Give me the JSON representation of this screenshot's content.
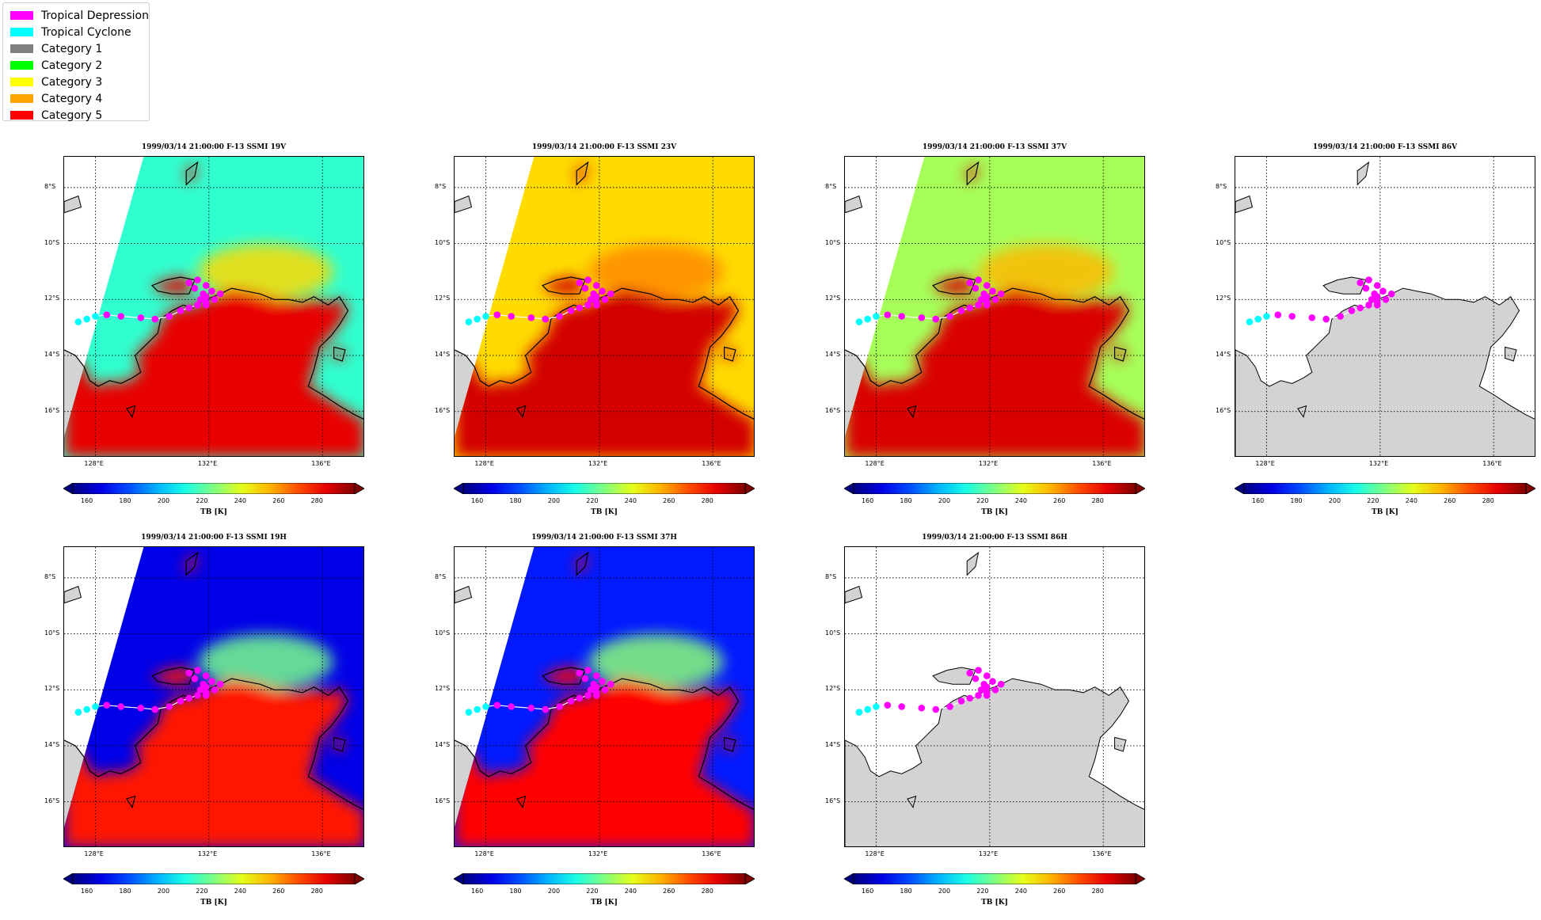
{
  "legend": {
    "items": [
      {
        "label": "Tropical Depression",
        "color": "#ff00ff"
      },
      {
        "label": "Tropical Cyclone",
        "color": "#00ffff"
      },
      {
        "label": "Category 1",
        "color": "#808080"
      },
      {
        "label": "Category 2",
        "color": "#00ff00"
      },
      {
        "label": "Category 3",
        "color": "#ffff00"
      },
      {
        "label": "Category 4",
        "color": "#ffa500"
      },
      {
        "label": "Category 5",
        "color": "#ff0000"
      }
    ]
  },
  "panels": [
    {
      "title": "1999/03/14 21:00:00  F-13 SSMI 19V",
      "style": "warm",
      "colorbar_label": "TB [K]"
    },
    {
      "title": "1999/03/14 21:00:00  F-13 SSMI 23V",
      "style": "hot",
      "colorbar_label": "TB [K]"
    },
    {
      "title": "1999/03/14 21:00:00  F-13 SSMI 37V",
      "style": "green",
      "colorbar_label": "TB [K]"
    },
    {
      "title": "1999/03/14 21:00:00  F-13 SSMI 86V",
      "style": "empty",
      "colorbar_label": "TB [K]"
    },
    {
      "title": "1999/03/14 21:00:00  F-13 SSMI 19H",
      "style": "cold",
      "colorbar_label": "TB [K]"
    },
    {
      "title": "1999/03/14 21:00:00  F-13 SSMI 37H",
      "style": "cold2",
      "colorbar_label": "TB [K]"
    },
    {
      "title": "1999/03/14 21:00:00  F-13 SSMI 86H",
      "style": "empty",
      "colorbar_label": "TB [K]"
    }
  ],
  "lat_ticks": [
    "8°S",
    "10°S",
    "12°S",
    "14°S",
    "16°S"
  ],
  "lon_ticks": [
    "128°E",
    "132°E",
    "136°E"
  ],
  "colorbar": {
    "ticks": [
      "160",
      "180",
      "200",
      "220",
      "240",
      "260",
      "280"
    ],
    "range": [
      153,
      300
    ]
  },
  "colors": {
    "land": "#d3d3d3",
    "track_line": "#ffffff",
    "cyclone_point": "#00ffff",
    "depression_point": "#ff00ff"
  }
}
